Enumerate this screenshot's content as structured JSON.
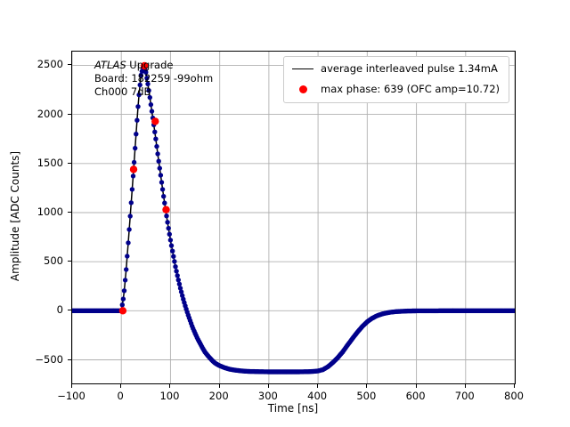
{
  "figure": {
    "background": "#ffffff"
  },
  "chart_data": {
    "type": "line",
    "title": "",
    "xlabel": "Time [ns]",
    "ylabel": "Amplitude [ADC Counts]",
    "xlim": [
      -100,
      800
    ],
    "ylim": [
      -740,
      2640
    ],
    "xticks": [
      -100,
      0,
      100,
      200,
      300,
      400,
      500,
      600,
      700,
      800
    ],
    "yticks": [
      -500,
      0,
      500,
      1000,
      1500,
      2000,
      2500
    ],
    "grid": true,
    "grid_color": "#b0b0b0",
    "legend": {
      "position": "upper right",
      "entries": [
        {
          "label": "average interleaved pulse 1.34mA",
          "type": "line",
          "color": "#000000"
        },
        {
          "label": "max phase: 639 (OFC amp=10.72)",
          "type": "dot",
          "color": "#ff0000"
        }
      ]
    },
    "annotation": {
      "line1_italic": "ATLAS",
      "line1_rest": " Upgrade",
      "line2": "Board: 182259 -99ohm",
      "line3": "Ch000 7dB"
    },
    "series": [
      {
        "name": "average interleaved pulse 1.34mA",
        "style": "line+markers",
        "line_color": "#000000",
        "marker_color": "#00008b",
        "marker_step_ns": 2,
        "control_points": [
          [
            -100,
            0
          ],
          [
            -50,
            0
          ],
          [
            -20,
            0
          ],
          [
            -10,
            0
          ],
          [
            -5,
            0
          ],
          [
            0,
            0
          ],
          [
            5,
            150
          ],
          [
            10,
            420
          ],
          [
            15,
            760
          ],
          [
            20,
            1100
          ],
          [
            25,
            1440
          ],
          [
            30,
            1800
          ],
          [
            35,
            2150
          ],
          [
            40,
            2400
          ],
          [
            45,
            2500
          ],
          [
            50,
            2430
          ],
          [
            55,
            2280
          ],
          [
            60,
            2100
          ],
          [
            65,
            1930
          ],
          [
            70,
            1750
          ],
          [
            75,
            1560
          ],
          [
            80,
            1380
          ],
          [
            85,
            1200
          ],
          [
            90,
            1030
          ],
          [
            95,
            870
          ],
          [
            100,
            720
          ],
          [
            105,
            580
          ],
          [
            110,
            450
          ],
          [
            115,
            335
          ],
          [
            120,
            230
          ],
          [
            125,
            135
          ],
          [
            130,
            50
          ],
          [
            135,
            -30
          ],
          [
            140,
            -100
          ],
          [
            145,
            -170
          ],
          [
            150,
            -230
          ],
          [
            155,
            -285
          ],
          [
            160,
            -330
          ],
          [
            165,
            -378
          ],
          [
            170,
            -420
          ],
          [
            175,
            -452
          ],
          [
            180,
            -480
          ],
          [
            185,
            -507
          ],
          [
            190,
            -530
          ],
          [
            195,
            -547
          ],
          [
            200,
            -560
          ],
          [
            210,
            -580
          ],
          [
            220,
            -595
          ],
          [
            230,
            -604
          ],
          [
            240,
            -610
          ],
          [
            250,
            -615
          ],
          [
            260,
            -618
          ],
          [
            270,
            -619
          ],
          [
            280,
            -620
          ],
          [
            290,
            -621
          ],
          [
            300,
            -622
          ],
          [
            320,
            -622
          ],
          [
            340,
            -622
          ],
          [
            360,
            -622
          ],
          [
            380,
            -620
          ],
          [
            390,
            -618
          ],
          [
            400,
            -613
          ],
          [
            410,
            -600
          ],
          [
            420,
            -570
          ],
          [
            430,
            -528
          ],
          [
            440,
            -478
          ],
          [
            450,
            -420
          ],
          [
            460,
            -350
          ],
          [
            470,
            -282
          ],
          [
            480,
            -218
          ],
          [
            490,
            -160
          ],
          [
            500,
            -112
          ],
          [
            510,
            -76
          ],
          [
            520,
            -50
          ],
          [
            530,
            -33
          ],
          [
            540,
            -21
          ],
          [
            550,
            -13
          ],
          [
            560,
            -8
          ],
          [
            580,
            -3
          ],
          [
            600,
            -1
          ],
          [
            650,
            0
          ],
          [
            700,
            0
          ],
          [
            750,
            0
          ],
          [
            800,
            0
          ]
        ]
      },
      {
        "name": "max phase: 639 (OFC amp=10.72)",
        "style": "markers",
        "marker_color": "#ff0000",
        "points": [
          [
            3,
            0
          ],
          [
            25,
            1440
          ],
          [
            47,
            2495
          ],
          [
            69,
            1930
          ],
          [
            91,
            1030
          ]
        ]
      }
    ]
  }
}
